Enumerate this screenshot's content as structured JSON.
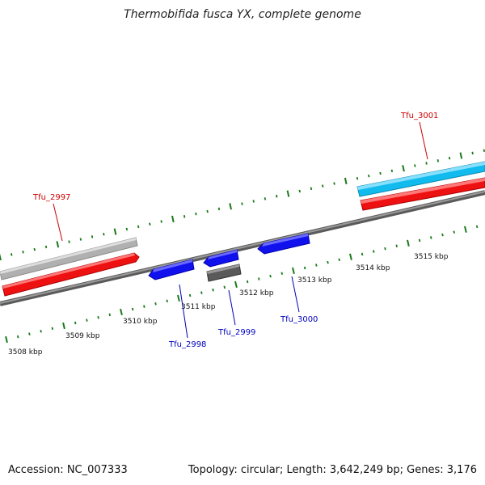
{
  "title": "Thermobifida fusca YX, complete genome",
  "footer": {
    "accession": "Accession: NC_007333",
    "summary": "Topology: circular; Length: 3,642,249 bp; Genes: 3,176"
  },
  "colors": {
    "forward_gene": "#ee1111",
    "reverse_gene": "#1111ee",
    "grey_gene": "#bbbbbb",
    "dark_gene": "#666666",
    "cyan_gene": "#11bbee",
    "backbone": "#808080",
    "tick": "#1a7a1a",
    "label_forward": "#cc0000",
    "label_reverse": "#0000bb"
  },
  "scale_ticks": [
    "3508 kbp",
    "3509 kbp",
    "3510 kbp",
    "3511 kbp",
    "3512 kbp",
    "3513 kbp",
    "3514 kbp",
    "3515 kbp"
  ],
  "gene_labels": {
    "tfu_2997": "Tfu_2997",
    "tfu_2998": "Tfu_2998",
    "tfu_2999": "Tfu_2999",
    "tfu_3000": "Tfu_3000",
    "tfu_3001": "Tfu_3001"
  }
}
